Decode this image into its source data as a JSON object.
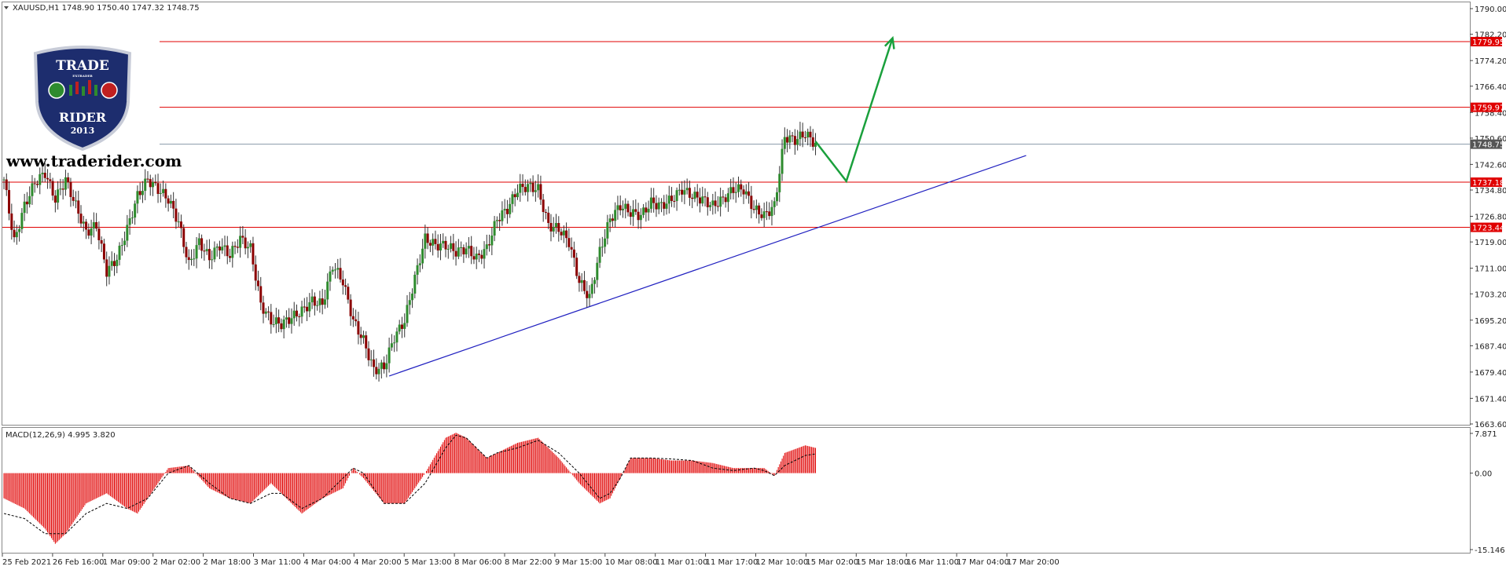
{
  "header": {
    "caption": "XAUUSD,H1  1748.90 1750.40 1747.32 1748.75",
    "macd_caption": "MACD(12,26,9) 4.995 3.820",
    "website": "www.traderider.com"
  },
  "logo": {
    "line1": "TRADE",
    "line2": "RIDER",
    "year": "2013",
    "small": "EXTRADER"
  },
  "colors": {
    "bull": "#2e8b2e",
    "bear": "#8b0000",
    "level": "#e00000",
    "current": "#8899aa",
    "trend": "#2020c0",
    "arrow": "#1aa03c",
    "macd": "#e00000",
    "signal": "#000000"
  },
  "chart_data": [
    {
      "type": "candlestick",
      "symbol": "XAUUSD",
      "timeframe": "H1",
      "ylim": [
        1663.6,
        1790.0
      ],
      "y_ticks": [
        "1790.00",
        "1782.20",
        "1774.20",
        "1766.40",
        "1758.40",
        "1750.60",
        "1742.60",
        "1734.80",
        "1726.80",
        "1719.00",
        "1711.00",
        "1703.20",
        "1695.20",
        "1687.40",
        "1679.40",
        "1671.40",
        "1663.60"
      ],
      "x_ticks": [
        "25 Feb 2021",
        "26 Feb 16:00",
        "1 Mar 09:00",
        "2 Mar 02:00",
        "2 Mar 18:00",
        "3 Mar 11:00",
        "4 Mar 04:00",
        "4 Mar 20:00",
        "5 Mar 13:00",
        "8 Mar 06:00",
        "8 Mar 22:00",
        "9 Mar 15:00",
        "10 Mar 08:00",
        "11 Mar 01:00",
        "11 Mar 17:00",
        "12 Mar 10:00",
        "15 Mar 02:00",
        "15 Mar 18:00",
        "16 Mar 11:00",
        "17 Mar 04:00",
        "17 Mar 20:00"
      ],
      "price_path": [
        [
          0,
          1738
        ],
        [
          2,
          1719
        ],
        [
          4,
          1730
        ],
        [
          6,
          1737
        ],
        [
          8,
          1740
        ],
        [
          10,
          1732
        ],
        [
          12,
          1738
        ],
        [
          14,
          1730
        ],
        [
          16,
          1722
        ],
        [
          18,
          1724
        ],
        [
          20,
          1710
        ],
        [
          22,
          1714
        ],
        [
          24,
          1723
        ],
        [
          26,
          1733
        ],
        [
          28,
          1738
        ],
        [
          30,
          1735
        ],
        [
          32,
          1732
        ],
        [
          34,
          1725
        ],
        [
          36,
          1712
        ],
        [
          38,
          1719
        ],
        [
          40,
          1714
        ],
        [
          42,
          1718
        ],
        [
          44,
          1715
        ],
        [
          46,
          1720
        ],
        [
          48,
          1717
        ],
        [
          50,
          1700
        ],
        [
          52,
          1695
        ],
        [
          54,
          1694
        ],
        [
          56,
          1696
        ],
        [
          58,
          1698
        ],
        [
          60,
          1701
        ],
        [
          62,
          1700
        ],
        [
          64,
          1712
        ],
        [
          66,
          1707
        ],
        [
          68,
          1695
        ],
        [
          70,
          1689
        ],
        [
          72,
          1680
        ],
        [
          74,
          1681
        ],
        [
          76,
          1690
        ],
        [
          78,
          1695
        ],
        [
          80,
          1708
        ],
        [
          82,
          1720
        ],
        [
          84,
          1718
        ],
        [
          86,
          1718
        ],
        [
          88,
          1716
        ],
        [
          90,
          1717
        ],
        [
          92,
          1714
        ],
        [
          94,
          1717
        ],
        [
          96,
          1726
        ],
        [
          98,
          1729
        ],
        [
          100,
          1735
        ],
        [
          102,
          1736
        ],
        [
          104,
          1735
        ],
        [
          106,
          1724
        ],
        [
          108,
          1723
        ],
        [
          110,
          1719
        ],
        [
          112,
          1707
        ],
        [
          114,
          1702
        ],
        [
          116,
          1716
        ],
        [
          118,
          1726
        ],
        [
          120,
          1730
        ],
        [
          122,
          1728
        ],
        [
          124,
          1727
        ],
        [
          126,
          1731
        ],
        [
          128,
          1730
        ],
        [
          130,
          1732
        ],
        [
          132,
          1735
        ],
        [
          134,
          1733
        ],
        [
          136,
          1732
        ],
        [
          138,
          1730
        ],
        [
          140,
          1732
        ],
        [
          142,
          1735
        ],
        [
          144,
          1735
        ],
        [
          146,
          1729
        ],
        [
          148,
          1727
        ],
        [
          150,
          1730
        ],
        [
          152,
          1751
        ],
        [
          154,
          1750
        ],
        [
          156,
          1752
        ],
        [
          158,
          1748.75
        ]
      ],
      "levels": [
        {
          "price": 1779.95,
          "label": "1779.95"
        },
        {
          "price": 1759.97,
          "label": "1759.97"
        },
        {
          "price": 1737.18,
          "label": "1737.18"
        },
        {
          "price": 1723.44,
          "label": "1723.44"
        }
      ],
      "current_price": {
        "price": 1748.75,
        "label": "1748.75"
      },
      "trendline": [
        [
          75,
          1678.2
        ],
        [
          199,
          1745.3
        ]
      ],
      "projection": [
        [
          158,
          1749.6
        ],
        [
          164,
          1737.5
        ],
        [
          173,
          1781.0
        ]
      ]
    },
    {
      "type": "histogram",
      "name": "MACD(12,26,9)",
      "ylim": [
        -15.146,
        7.871
      ],
      "y_ticks": [
        "7.871",
        "0.00",
        "-15.146"
      ],
      "macd_path": [
        [
          0,
          -5
        ],
        [
          4,
          -7
        ],
        [
          8,
          -11
        ],
        [
          10,
          -14
        ],
        [
          12,
          -12
        ],
        [
          16,
          -6
        ],
        [
          20,
          -4
        ],
        [
          24,
          -7
        ],
        [
          26,
          -8
        ],
        [
          28,
          -5
        ],
        [
          32,
          1
        ],
        [
          36,
          1.5
        ],
        [
          40,
          -3
        ],
        [
          44,
          -5
        ],
        [
          48,
          -6
        ],
        [
          52,
          -2
        ],
        [
          54,
          -4
        ],
        [
          58,
          -8
        ],
        [
          62,
          -5
        ],
        [
          66,
          -3
        ],
        [
          68,
          1
        ],
        [
          70,
          -1
        ],
        [
          74,
          -6
        ],
        [
          78,
          -6
        ],
        [
          82,
          0
        ],
        [
          86,
          7
        ],
        [
          88,
          8
        ],
        [
          90,
          7
        ],
        [
          94,
          3
        ],
        [
          96,
          4
        ],
        [
          100,
          6
        ],
        [
          104,
          7
        ],
        [
          108,
          3
        ],
        [
          112,
          -2
        ],
        [
          116,
          -6
        ],
        [
          118,
          -5
        ],
        [
          120,
          -1
        ],
        [
          122,
          3
        ],
        [
          126,
          3
        ],
        [
          130,
          2.5
        ],
        [
          134,
          2.5
        ],
        [
          138,
          2
        ],
        [
          142,
          1
        ],
        [
          146,
          1
        ],
        [
          148,
          1
        ],
        [
          150,
          -0.5
        ],
        [
          152,
          4
        ],
        [
          156,
          5.5
        ],
        [
          158,
          5
        ]
      ],
      "signal_path": [
        [
          0,
          -8
        ],
        [
          4,
          -9
        ],
        [
          8,
          -12
        ],
        [
          12,
          -12
        ],
        [
          16,
          -8
        ],
        [
          20,
          -6
        ],
        [
          24,
          -7
        ],
        [
          28,
          -5
        ],
        [
          32,
          0
        ],
        [
          36,
          1.5
        ],
        [
          40,
          -2
        ],
        [
          44,
          -5
        ],
        [
          48,
          -6
        ],
        [
          52,
          -4
        ],
        [
          54,
          -4
        ],
        [
          58,
          -7
        ],
        [
          62,
          -5
        ],
        [
          66,
          -1
        ],
        [
          68,
          1
        ],
        [
          70,
          0
        ],
        [
          74,
          -6
        ],
        [
          78,
          -6
        ],
        [
          82,
          -2
        ],
        [
          86,
          5
        ],
        [
          88,
          7.5
        ],
        [
          90,
          7
        ],
        [
          94,
          3
        ],
        [
          96,
          4
        ],
        [
          100,
          5
        ],
        [
          104,
          6.5
        ],
        [
          108,
          4
        ],
        [
          112,
          0
        ],
        [
          116,
          -5
        ],
        [
          118,
          -4
        ],
        [
          120,
          -1
        ],
        [
          122,
          3
        ],
        [
          126,
          3
        ],
        [
          130,
          2.8
        ],
        [
          134,
          2.5
        ],
        [
          138,
          1
        ],
        [
          142,
          0.5
        ],
        [
          146,
          1
        ],
        [
          148,
          0.5
        ],
        [
          150,
          -0.5
        ],
        [
          152,
          1.5
        ],
        [
          156,
          3.5
        ],
        [
          158,
          3.8
        ]
      ]
    }
  ]
}
